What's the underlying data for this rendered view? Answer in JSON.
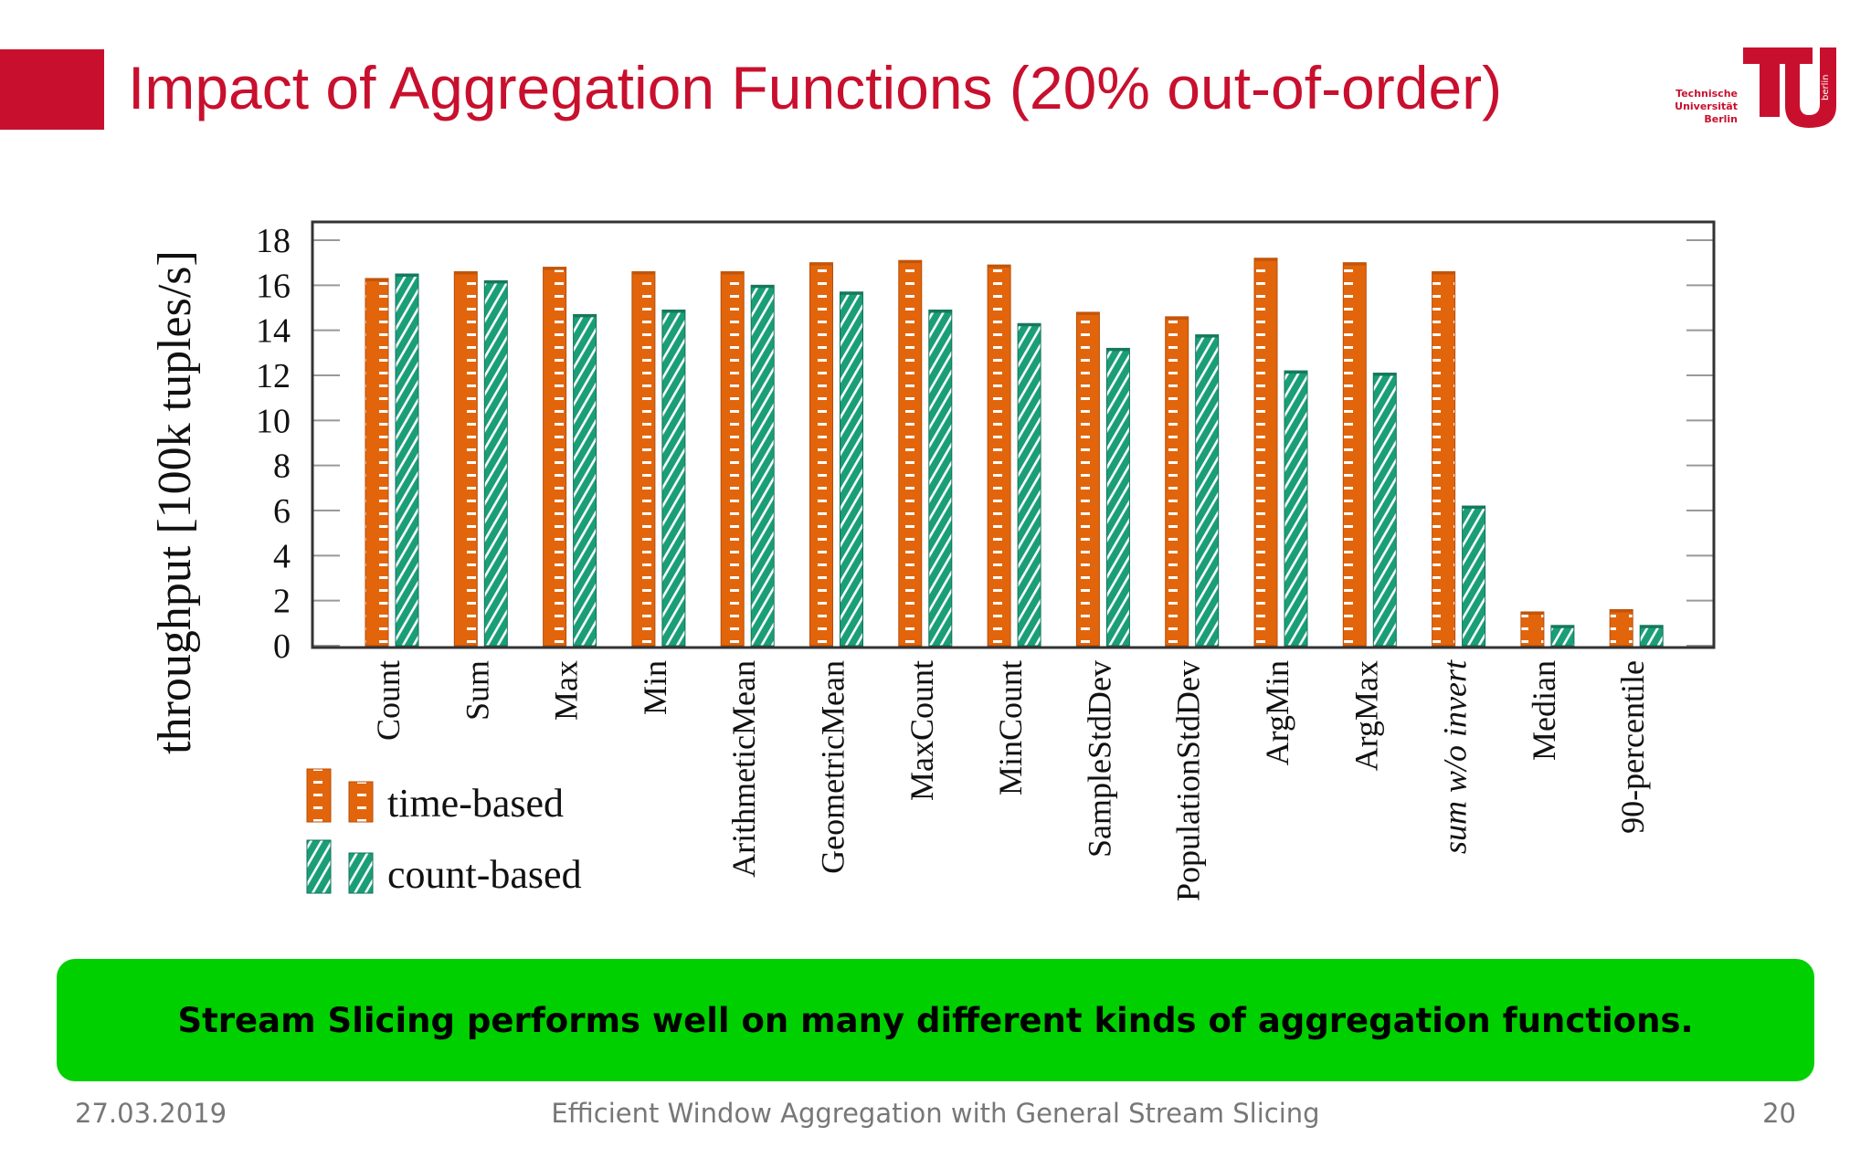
{
  "slide": {
    "title": "Impact of Aggregation Functions (20% out-of-order)",
    "banner": "Stream Slicing performs well on many different kinds of aggregation functions.",
    "footer": {
      "date": "27.03.2019",
      "center": "Efficient Window Aggregation with General Stream Slicing",
      "page": "20"
    },
    "logo": {
      "line1": "Technische",
      "line2": "Universität",
      "line3": "Berlin",
      "side": "berlin",
      "color": "#c8102e"
    },
    "banner_color": "#00d000",
    "accent_color": "#c8102e"
  },
  "chart_data": {
    "type": "bar",
    "title": "",
    "xlabel": "",
    "ylabel": "throughput [100k tuples/s]",
    "ylim": [
      0,
      18
    ],
    "yticks": [
      "0",
      "2",
      "4",
      "6",
      "8",
      "10",
      "12",
      "14",
      "16",
      "18"
    ],
    "grid": false,
    "legend_placement": "bottom-left, below x-axis",
    "categories": [
      "Count",
      "Sum",
      "Max",
      "Min",
      "ArithmeticMean",
      "GeometricMean",
      "MaxCount",
      "MinCount",
      "SampleStdDev",
      "PopulationStdDev",
      "ArgMin",
      "ArgMax",
      "sum w/o invert",
      "Median",
      "90-percentile"
    ],
    "series": [
      {
        "name": "time-based",
        "color": "#e2650c",
        "pattern": "horizontal-dashes",
        "values": [
          16.3,
          16.6,
          16.8,
          16.6,
          16.6,
          17.0,
          17.1,
          16.9,
          14.8,
          14.6,
          17.2,
          17.0,
          16.6,
          1.5,
          1.6
        ]
      },
      {
        "name": "count-based",
        "color": "#1a9e77",
        "pattern": "diagonal-hatch",
        "values": [
          16.5,
          16.2,
          14.7,
          14.9,
          16.0,
          15.7,
          14.9,
          14.3,
          13.2,
          13.8,
          12.2,
          12.1,
          6.2,
          0.9,
          0.9
        ]
      }
    ]
  }
}
